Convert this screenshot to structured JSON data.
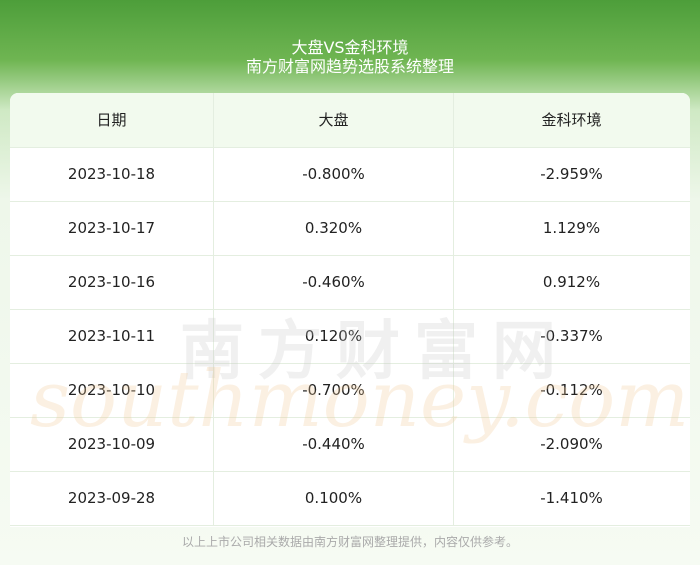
{
  "header": {
    "title": "大盘VS金科环境",
    "subtitle": "南方财富网趋势选股系统整理"
  },
  "table": {
    "columns": [
      "日期",
      "大盘",
      "金科环境"
    ],
    "rows": [
      [
        "2023-10-18",
        "-0.800%",
        "-2.959%"
      ],
      [
        "2023-10-17",
        "0.320%",
        "1.129%"
      ],
      [
        "2023-10-16",
        "-0.460%",
        "0.912%"
      ],
      [
        "2023-10-11",
        "0.120%",
        "-0.337%"
      ],
      [
        "2023-10-10",
        "-0.700%",
        "-0.112%"
      ],
      [
        "2023-10-09",
        "-0.440%",
        "-2.090%"
      ],
      [
        "2023-09-28",
        "0.100%",
        "-1.410%"
      ]
    ]
  },
  "watermark": {
    "brand": "南方财富网",
    "site": "southmoney.com"
  },
  "footer": "以上上市公司相关数据由南方财富网整理提供，内容仅供参考。"
}
